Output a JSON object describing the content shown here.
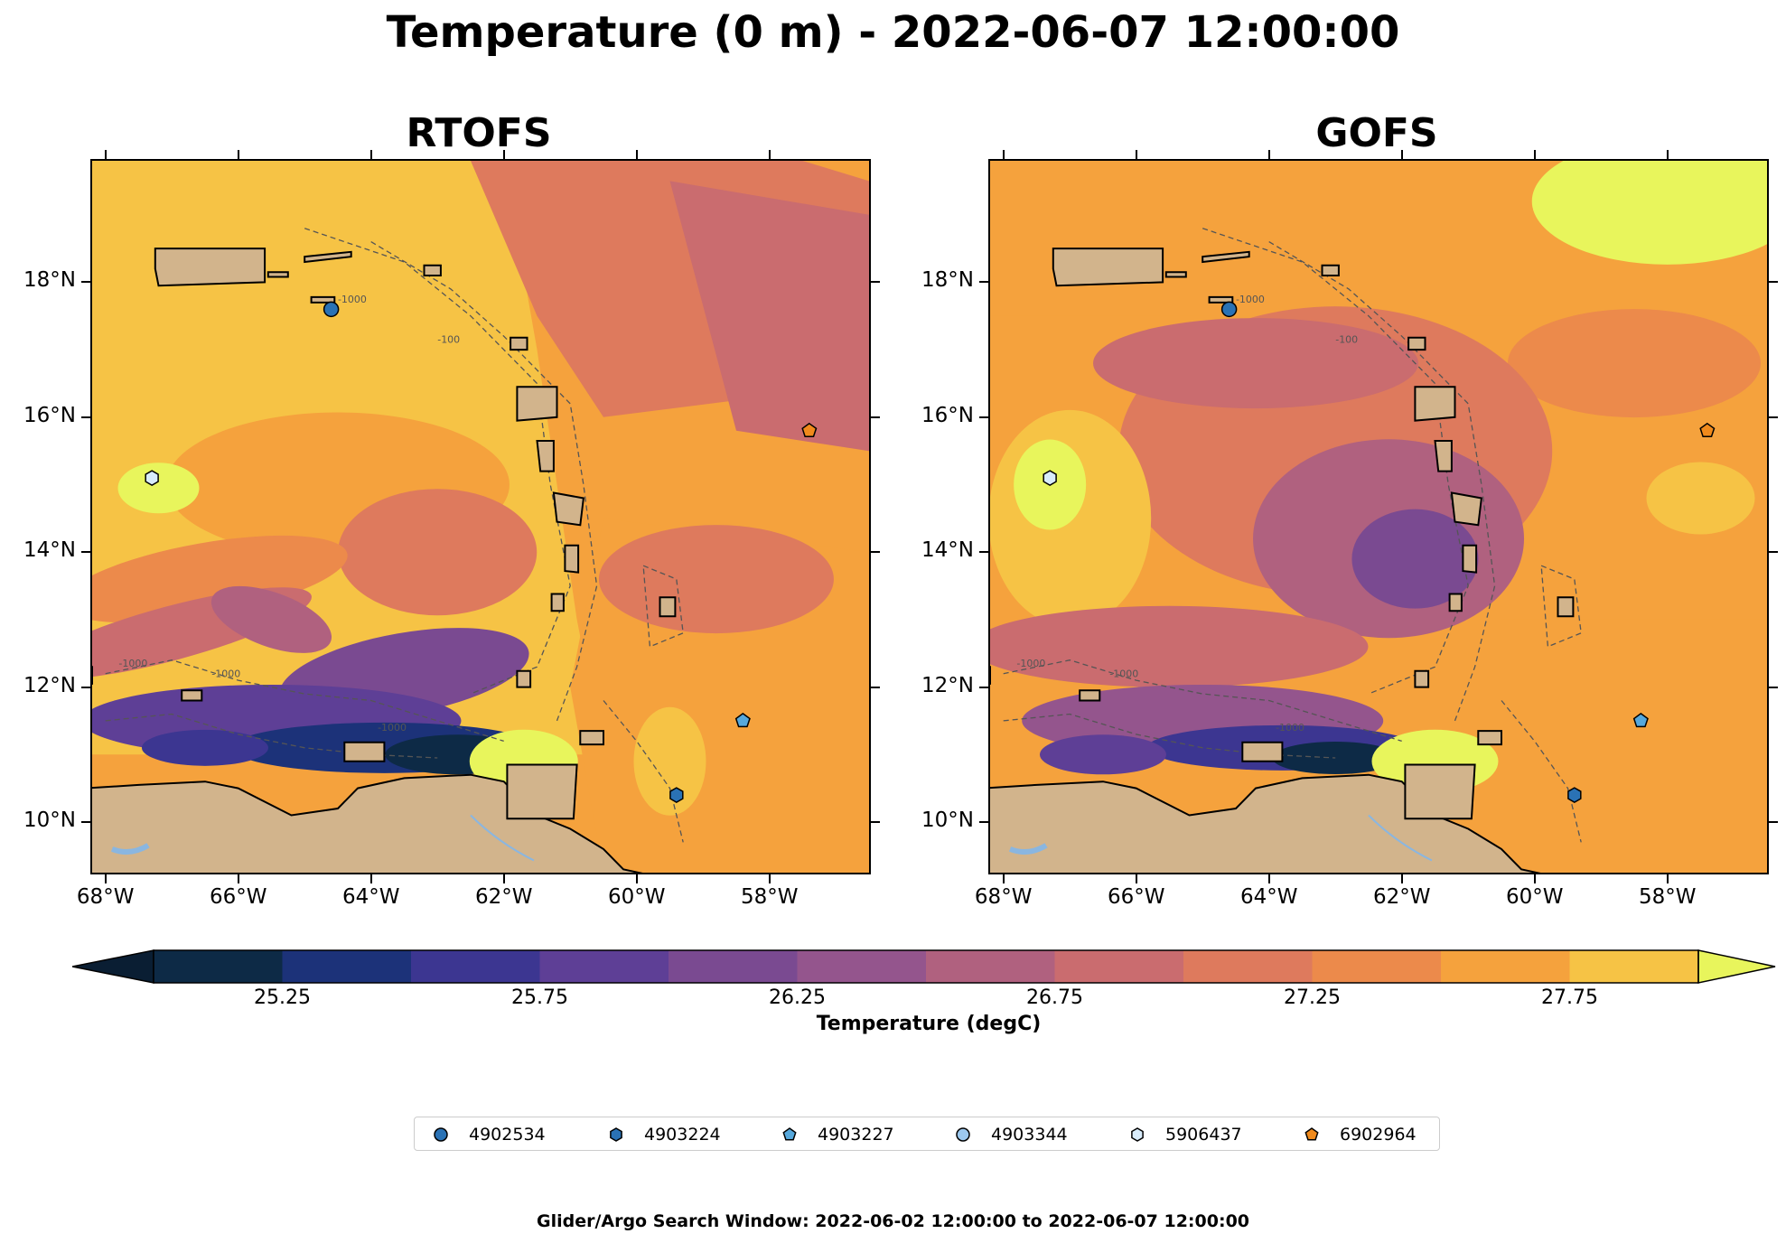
{
  "figure": {
    "suptitle": "Temperature (0 m) - 2022-06-07 12:00:00",
    "footer": "Glider/Argo Search Window: 2022-06-02 12:00:00 to 2022-06-07 12:00:00"
  },
  "map": {
    "extent": {
      "lon_min": -68.2,
      "lon_max": -56.5,
      "lat_min": 9.25,
      "lat_max": 19.8
    },
    "xticks": [
      "68°W",
      "66°W",
      "64°W",
      "62°W",
      "60°W",
      "58°W"
    ],
    "xtick_values": [
      -68,
      -66,
      -64,
      -62,
      -60,
      -58
    ],
    "yticks": [
      "10°N",
      "12°N",
      "14°N",
      "16°N",
      "18°N"
    ],
    "ytick_values": [
      10,
      12,
      14,
      16,
      18
    ],
    "bathymetry_contours": [
      "-1000",
      "-1000",
      "-1000",
      "-1000",
      "-100"
    ],
    "land_color": "#d2b48c",
    "panels": [
      {
        "id": "rtofs",
        "title": "RTOFS",
        "model": "RTOFS"
      },
      {
        "id": "gofs",
        "title": "GOFS",
        "model": "GOFS"
      }
    ]
  },
  "colorbar": {
    "label": "Temperature (degC)",
    "tick_labels": [
      "25.25",
      "25.75",
      "26.25",
      "26.75",
      "27.25",
      "27.75"
    ],
    "levels": [
      25.0,
      25.25,
      25.5,
      25.75,
      26.0,
      26.25,
      26.5,
      26.75,
      27.0,
      27.25,
      27.5,
      27.75,
      28.0
    ],
    "colors": [
      "#0d2a46",
      "#1c3279",
      "#3c3691",
      "#5e3f96",
      "#7a4a91",
      "#94558d",
      "#b0617f",
      "#ca6c6f",
      "#de7a5d",
      "#ec8a4b",
      "#f5a23d",
      "#f6c345"
    ],
    "extend_low_color": "#0a1e33",
    "extend_high_color": "#e8f55c"
  },
  "legend": {
    "items": [
      {
        "label": "4902534",
        "marker": "circle",
        "color": "#2a72b5"
      },
      {
        "label": "4903224",
        "marker": "hexagon",
        "color": "#2a72b5"
      },
      {
        "label": "4903227",
        "marker": "pentagon",
        "color": "#56a8dc"
      },
      {
        "label": "4903344",
        "marker": "circle",
        "color": "#9cc8ee"
      },
      {
        "label": "5906437",
        "marker": "hexagon",
        "color": "#d8ecfb"
      },
      {
        "label": "6902964",
        "marker": "pentagon",
        "color": "#f08a1c"
      }
    ]
  },
  "floats": [
    {
      "id": "4902534",
      "lon": -64.6,
      "lat": 17.6
    },
    {
      "id": "4903224",
      "lon": -59.4,
      "lat": 10.4
    },
    {
      "id": "4903227",
      "lon": -58.4,
      "lat": 11.5
    },
    {
      "id": "5906437",
      "lon": -67.3,
      "lat": 15.1
    },
    {
      "id": "6902964",
      "lon": -57.4,
      "lat": 15.8
    }
  ]
}
